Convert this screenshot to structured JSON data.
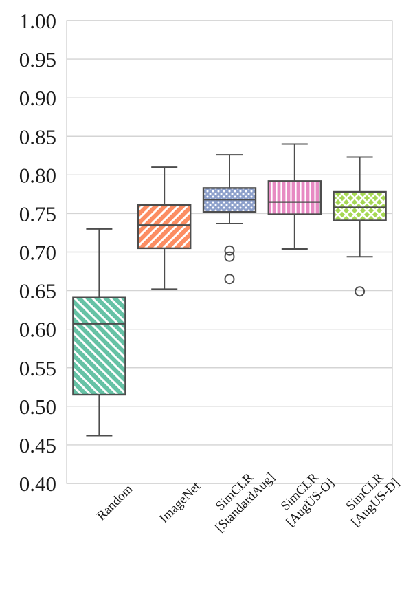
{
  "chart_data": {
    "type": "box",
    "title": "",
    "xlabel": "",
    "ylabel": "",
    "ylim": [
      0.4,
      1.0
    ],
    "yticks": [
      "0.40",
      "0.45",
      "0.50",
      "0.55",
      "0.60",
      "0.65",
      "0.70",
      "0.75",
      "0.80",
      "0.85",
      "0.90",
      "0.95",
      "1.00"
    ],
    "grid": "horizontal",
    "categories": [
      {
        "lines": [
          "Random"
        ]
      },
      {
        "lines": [
          "ImageNet"
        ]
      },
      {
        "lines": [
          "SimCLR",
          "[StandardAug]"
        ]
      },
      {
        "lines": [
          "SimCLR",
          "[AugUS-O]"
        ]
      },
      {
        "lines": [
          "SimCLR",
          "[AugUS-D]"
        ]
      }
    ],
    "boxes": [
      {
        "whisker_low": 0.462,
        "q1": 0.515,
        "median": 0.607,
        "q3": 0.641,
        "whisker_high": 0.73,
        "outliers": [],
        "color": "#66c2a5",
        "hatch": "diagonal-back"
      },
      {
        "whisker_low": 0.652,
        "q1": 0.705,
        "median": 0.735,
        "q3": 0.761,
        "whisker_high": 0.81,
        "outliers": [],
        "color": "#fc8d62",
        "hatch": "diagonal-forward"
      },
      {
        "whisker_low": 0.737,
        "q1": 0.752,
        "median": 0.768,
        "q3": 0.783,
        "whisker_high": 0.826,
        "outliers": [
          0.702,
          0.694,
          0.665
        ],
        "color": "#8da0cb",
        "hatch": "dots"
      },
      {
        "whisker_low": 0.704,
        "q1": 0.749,
        "median": 0.765,
        "q3": 0.792,
        "whisker_high": 0.84,
        "outliers": [],
        "color": "#e78ac3",
        "hatch": "vertical"
      },
      {
        "whisker_low": 0.694,
        "q1": 0.741,
        "median": 0.758,
        "q3": 0.778,
        "whisker_high": 0.823,
        "outliers": [
          0.649
        ],
        "color": "#a6d854",
        "hatch": "crosshatch"
      }
    ]
  }
}
